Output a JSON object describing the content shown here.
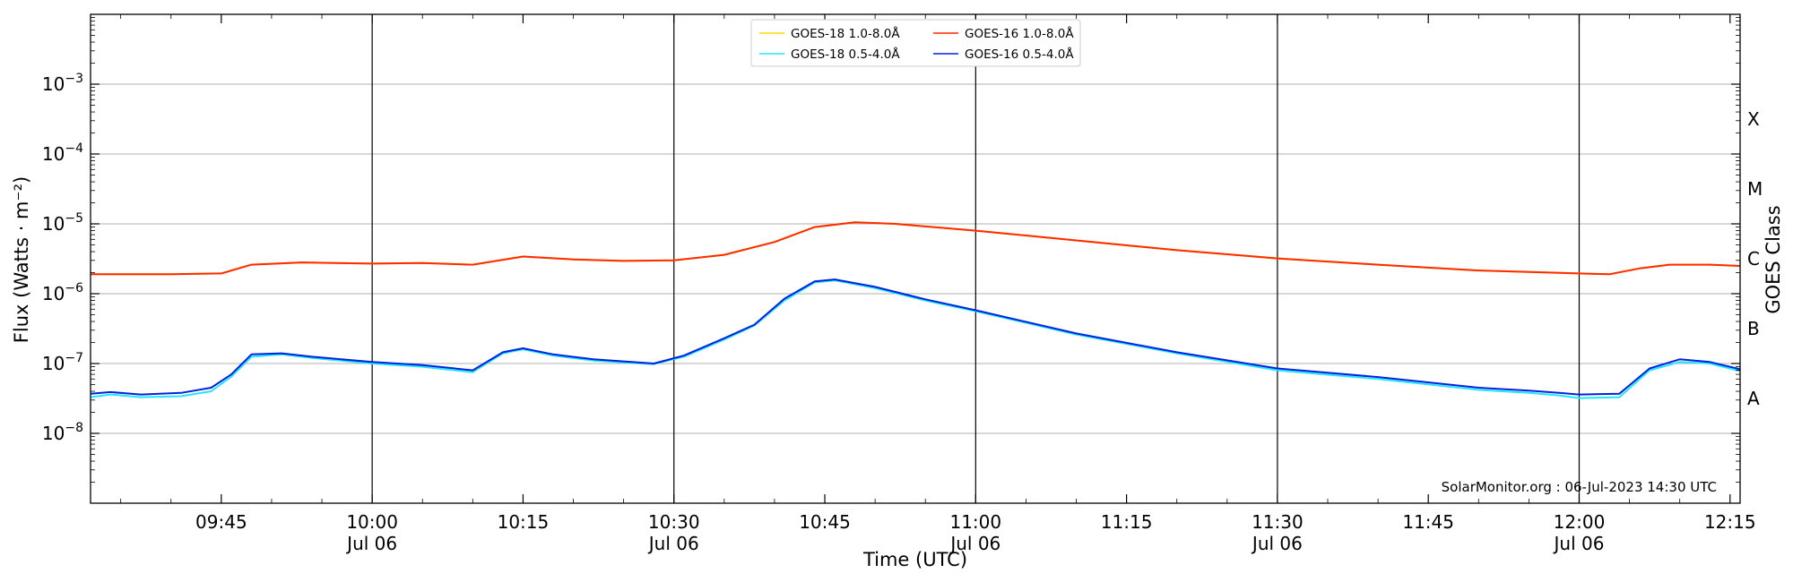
{
  "chart_data": {
    "type": "line",
    "xlabel": "Time (UTC)",
    "ylabel": "Flux (Watts · m⁻²)",
    "y2label": "GOES Class",
    "yscale": "log",
    "ylim": [
      1e-09,
      0.01
    ],
    "xlim": [
      "09:32",
      "12:16"
    ],
    "grid": "horizontal",
    "legend_position": "top-center",
    "credit": "SolarMonitor.org : 06-Jul-2023 14:30 UTC",
    "y_ticks": [
      {
        "value": 1e-08,
        "base": "10",
        "exp": "−8"
      },
      {
        "value": 1e-07,
        "base": "10",
        "exp": "−7"
      },
      {
        "value": 1e-06,
        "base": "10",
        "exp": "−6"
      },
      {
        "value": 1e-05,
        "base": "10",
        "exp": "−5"
      },
      {
        "value": 0.0001,
        "base": "10",
        "exp": "−4"
      },
      {
        "value": 0.001,
        "base": "10",
        "exp": "−3"
      }
    ],
    "class_labels": [
      {
        "label": "A",
        "value": 1e-08
      },
      {
        "label": "B",
        "value": 1e-07
      },
      {
        "label": "C",
        "value": 1e-06
      },
      {
        "label": "M",
        "value": 1e-05
      },
      {
        "label": "X",
        "value": 0.0001
      }
    ],
    "x_ticks": [
      {
        "time": "09:45",
        "label": "09:45",
        "date": ""
      },
      {
        "time": "10:00",
        "label": "10:00",
        "date": "Jul 06"
      },
      {
        "time": "10:15",
        "label": "10:15",
        "date": ""
      },
      {
        "time": "10:30",
        "label": "10:30",
        "date": "Jul 06"
      },
      {
        "time": "10:45",
        "label": "10:45",
        "date": ""
      },
      {
        "time": "11:00",
        "label": "11:00",
        "date": "Jul 06"
      },
      {
        "time": "11:15",
        "label": "11:15",
        "date": ""
      },
      {
        "time": "11:30",
        "label": "11:30",
        "date": "Jul 06"
      },
      {
        "time": "11:45",
        "label": "11:45",
        "date": ""
      },
      {
        "time": "12:00",
        "label": "12:00",
        "date": "Jul 06"
      },
      {
        "time": "12:15",
        "label": "12:15",
        "date": ""
      }
    ],
    "vlines": [
      "10:00",
      "10:30",
      "11:00",
      "11:30",
      "12:00"
    ],
    "series": [
      {
        "name": "GOES-18 1.0-8.0Å",
        "color": "#ffd700",
        "x": [
          "09:32",
          "09:40",
          "09:45",
          "09:48",
          "09:53",
          "10:00",
          "10:05",
          "10:10",
          "10:15",
          "10:20",
          "10:25",
          "10:30",
          "10:35",
          "10:40",
          "10:44",
          "10:48",
          "10:52",
          "11:00",
          "11:10",
          "11:20",
          "11:30",
          "11:40",
          "11:50",
          "12:00",
          "12:03",
          "12:06",
          "12:09",
          "12:13",
          "12:16"
        ],
        "y": [
          1.9e-06,
          1.9e-06,
          1.95e-06,
          2.6e-06,
          2.8e-06,
          2.7e-06,
          2.75e-06,
          2.6e-06,
          3.4e-06,
          3.1e-06,
          2.95e-06,
          3e-06,
          3.6e-06,
          5.5e-06,
          9e-06,
          1.05e-05,
          1e-05,
          8e-06,
          5.8e-06,
          4.2e-06,
          3.2e-06,
          2.6e-06,
          2.15e-06,
          1.95e-06,
          1.9e-06,
          2.3e-06,
          2.6e-06,
          2.6e-06,
          2.5e-06
        ]
      },
      {
        "name": "GOES-16 1.0-8.0Å",
        "color": "#ff2a00",
        "x": [
          "09:32",
          "09:40",
          "09:45",
          "09:48",
          "09:53",
          "10:00",
          "10:05",
          "10:10",
          "10:15",
          "10:20",
          "10:25",
          "10:30",
          "10:35",
          "10:40",
          "10:44",
          "10:48",
          "10:52",
          "11:00",
          "11:10",
          "11:20",
          "11:30",
          "11:40",
          "11:50",
          "12:00",
          "12:03",
          "12:06",
          "12:09",
          "12:13",
          "12:16"
        ],
        "y": [
          1.9e-06,
          1.9e-06,
          1.95e-06,
          2.6e-06,
          2.8e-06,
          2.7e-06,
          2.75e-06,
          2.6e-06,
          3.4e-06,
          3.1e-06,
          2.95e-06,
          3e-06,
          3.6e-06,
          5.5e-06,
          9e-06,
          1.05e-05,
          1e-05,
          8e-06,
          5.8e-06,
          4.2e-06,
          3.2e-06,
          2.6e-06,
          2.15e-06,
          1.95e-06,
          1.9e-06,
          2.3e-06,
          2.6e-06,
          2.6e-06,
          2.5e-06
        ]
      },
      {
        "name": "GOES-18 0.5-4.0Å",
        "color": "#22e6ff",
        "x": [
          "09:32",
          "09:34",
          "09:37",
          "09:41",
          "09:44",
          "09:46",
          "09:48",
          "09:51",
          "09:54",
          "10:00",
          "10:05",
          "10:10",
          "10:13",
          "10:15",
          "10:18",
          "10:22",
          "10:28",
          "10:31",
          "10:35",
          "10:38",
          "10:41",
          "10:44",
          "10:46",
          "10:50",
          "10:55",
          "11:00",
          "11:10",
          "11:20",
          "11:30",
          "11:40",
          "11:50",
          "11:55",
          "11:58",
          "12:00",
          "12:04",
          "12:07",
          "12:10",
          "12:13",
          "12:16"
        ],
        "y": [
          3.3e-08,
          3.6e-08,
          3.3e-08,
          3.4e-08,
          4e-08,
          6.5e-08,
          1.25e-07,
          1.35e-07,
          1.2e-07,
          1e-07,
          9e-08,
          7.5e-08,
          1.4e-07,
          1.6e-07,
          1.3e-07,
          1.1e-07,
          9.8e-08,
          1.25e-07,
          2.2e-07,
          3.5e-07,
          8e-07,
          1.45e-06,
          1.55e-06,
          1.2e-06,
          8e-07,
          5.6e-07,
          2.6e-07,
          1.4e-07,
          8e-08,
          6e-08,
          4.2e-08,
          3.8e-08,
          3.5e-08,
          3.2e-08,
          3.3e-08,
          8e-08,
          1.05e-07,
          1e-07,
          7.8e-08
        ]
      },
      {
        "name": "GOES-16 0.5-4.0Å",
        "color": "#0022dd",
        "x": [
          "09:32",
          "09:34",
          "09:37",
          "09:41",
          "09:44",
          "09:46",
          "09:48",
          "09:51",
          "09:54",
          "10:00",
          "10:05",
          "10:10",
          "10:13",
          "10:15",
          "10:18",
          "10:22",
          "10:28",
          "10:31",
          "10:35",
          "10:38",
          "10:41",
          "10:44",
          "10:46",
          "10:50",
          "10:55",
          "11:00",
          "11:10",
          "11:20",
          "11:30",
          "11:40",
          "11:50",
          "11:55",
          "11:58",
          "12:00",
          "12:04",
          "12:07",
          "12:10",
          "12:13",
          "12:16"
        ],
        "y": [
          3.7e-08,
          3.9e-08,
          3.6e-08,
          3.8e-08,
          4.5e-08,
          7e-08,
          1.35e-07,
          1.4e-07,
          1.25e-07,
          1.05e-07,
          9.5e-08,
          8e-08,
          1.45e-07,
          1.65e-07,
          1.35e-07,
          1.15e-07,
          1e-07,
          1.3e-07,
          2.3e-07,
          3.6e-07,
          8.5e-07,
          1.5e-06,
          1.6e-06,
          1.25e-06,
          8.3e-07,
          5.8e-07,
          2.7e-07,
          1.45e-07,
          8.5e-08,
          6.4e-08,
          4.5e-08,
          4.1e-08,
          3.8e-08,
          3.6e-08,
          3.7e-08,
          8.5e-08,
          1.15e-07,
          1.05e-07,
          8.3e-08
        ]
      }
    ],
    "legend_order": [
      0,
      2,
      1,
      3
    ]
  }
}
